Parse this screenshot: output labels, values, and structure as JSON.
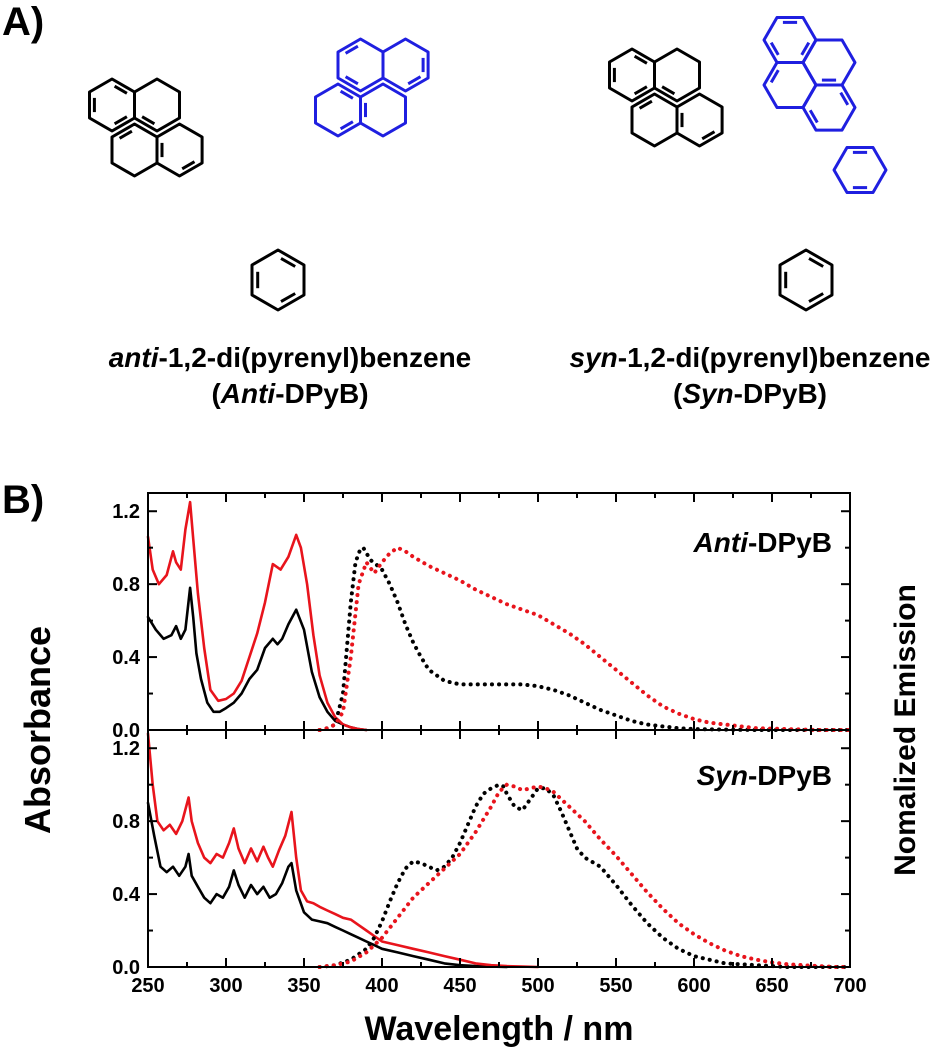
{
  "panels": {
    "a_label": "A)",
    "b_label": "B)"
  },
  "molecules": {
    "anti": {
      "line1_italic": "anti",
      "line1_rest": "-1,2-di(pyrenyl)benzene",
      "line2_open": "(",
      "line2_italic": "Anti",
      "line2_rest": "-DPyB)"
    },
    "syn": {
      "line1_italic": "syn",
      "line1_rest": "-1,2-di(pyrenyl)benzene",
      "line2_open": "(",
      "line2_italic": "Syn",
      "line2_rest": "-DPyB)"
    },
    "colors": {
      "black": "#000000",
      "blue": "#1f1fe0"
    }
  },
  "chart_data": {
    "type": "line",
    "xlabel": "Wavelength / nm",
    "ylabel_left": "Absorbance",
    "ylabel_right": "Nomalized Emission",
    "xlim": [
      250,
      700
    ],
    "xticks": [
      "250",
      "300",
      "350",
      "400",
      "450",
      "500",
      "550",
      "600",
      "650",
      "700"
    ],
    "ylim": [
      0,
      1.3
    ],
    "yticks": [
      "0.0",
      "0.4",
      "0.8",
      "1.2"
    ],
    "colors": {
      "black": "#000000",
      "red": "#e8141c"
    },
    "panels": [
      {
        "label_italic": "Anti",
        "label_rest": "-DPyB",
        "series": [
          {
            "color": "black",
            "style": "solid",
            "x": [
              250,
              255,
              260,
              265,
              268,
              271,
              274,
              277,
              279,
              281,
              284,
              288,
              292,
              296,
              300,
              305,
              310,
              315,
              320,
              325,
              330,
              333,
              336,
              340,
              345,
              350,
              355,
              360,
              365,
              370,
              375,
              380,
              385,
              390
            ],
            "y": [
              0.62,
              0.55,
              0.5,
              0.52,
              0.57,
              0.5,
              0.55,
              0.78,
              0.62,
              0.42,
              0.28,
              0.15,
              0.1,
              0.1,
              0.12,
              0.15,
              0.2,
              0.28,
              0.33,
              0.45,
              0.5,
              0.47,
              0.5,
              0.58,
              0.66,
              0.55,
              0.32,
              0.18,
              0.1,
              0.05,
              0.03,
              0.015,
              0.005,
              0.0
            ]
          },
          {
            "color": "red",
            "style": "solid",
            "x": [
              250,
              253,
              257,
              262,
              266,
              268,
              271,
              274,
              277,
              279,
              282,
              286,
              290,
              295,
              300,
              305,
              310,
              315,
              320,
              325,
              330,
              335,
              340,
              345,
              348,
              352,
              356,
              360,
              365,
              370,
              375,
              380,
              385,
              390
            ],
            "y": [
              1.06,
              0.88,
              0.8,
              0.85,
              0.98,
              0.92,
              0.88,
              1.1,
              1.25,
              1.05,
              0.75,
              0.45,
              0.22,
              0.16,
              0.17,
              0.2,
              0.27,
              0.4,
              0.53,
              0.7,
              0.91,
              0.88,
              0.95,
              1.07,
              1.0,
              0.8,
              0.52,
              0.3,
              0.15,
              0.07,
              0.03,
              0.015,
              0.005,
              0.0
            ]
          },
          {
            "color": "black",
            "style": "dotted",
            "x": [
              360,
              365,
              370,
              375,
              380,
              383,
              386,
              388,
              390,
              393,
              396,
              400,
              405,
              410,
              415,
              420,
              425,
              430,
              440,
              450,
              460,
              470,
              480,
              490,
              500,
              510,
              520,
              530,
              540,
              550,
              560,
              570,
              580,
              590,
              600,
              620,
              640,
              660,
              680,
              700
            ],
            "y": [
              0.0,
              0.01,
              0.03,
              0.2,
              0.7,
              0.92,
              0.99,
              1.0,
              0.97,
              0.93,
              0.91,
              0.88,
              0.8,
              0.7,
              0.58,
              0.48,
              0.4,
              0.33,
              0.27,
              0.25,
              0.25,
              0.25,
              0.25,
              0.25,
              0.24,
              0.22,
              0.19,
              0.15,
              0.11,
              0.08,
              0.05,
              0.03,
              0.02,
              0.01,
              0.005,
              0.002,
              0.0,
              0.0,
              0.0,
              0.0
            ]
          },
          {
            "color": "red",
            "style": "dotted",
            "x": [
              360,
              365,
              370,
              375,
              380,
              385,
              390,
              395,
              400,
              405,
              410,
              415,
              420,
              430,
              440,
              450,
              460,
              470,
              480,
              490,
              500,
              510,
              520,
              530,
              540,
              550,
              560,
              570,
              580,
              590,
              600,
              610,
              620,
              630,
              640,
              660,
              680,
              700
            ],
            "y": [
              0.0,
              0.01,
              0.03,
              0.1,
              0.4,
              0.8,
              0.92,
              0.86,
              0.92,
              0.97,
              1.0,
              0.98,
              0.95,
              0.9,
              0.86,
              0.82,
              0.77,
              0.73,
              0.69,
              0.66,
              0.63,
              0.58,
              0.53,
              0.47,
              0.4,
              0.33,
              0.26,
              0.19,
              0.13,
              0.09,
              0.06,
              0.04,
              0.03,
              0.02,
              0.01,
              0.005,
              0.0,
              0.0
            ]
          }
        ]
      },
      {
        "label_italic": "Syn",
        "label_rest": "-DPyB",
        "series": [
          {
            "color": "black",
            "style": "solid",
            "x": [
              250,
              254,
              258,
              262,
              266,
              270,
              274,
              276,
              278,
              282,
              286,
              290,
              294,
              298,
              302,
              305,
              308,
              312,
              316,
              320,
              324,
              328,
              332,
              336,
              340,
              342,
              345,
              350,
              355,
              360,
              365,
              370,
              375,
              380,
              385,
              390,
              395,
              400,
              410,
              420,
              430,
              440,
              450,
              460,
              470,
              480
            ],
            "y": [
              0.9,
              0.72,
              0.55,
              0.52,
              0.55,
              0.5,
              0.55,
              0.62,
              0.5,
              0.44,
              0.38,
              0.35,
              0.4,
              0.38,
              0.44,
              0.53,
              0.45,
              0.38,
              0.45,
              0.4,
              0.44,
              0.38,
              0.4,
              0.46,
              0.55,
              0.57,
              0.42,
              0.3,
              0.26,
              0.25,
              0.24,
              0.22,
              0.2,
              0.18,
              0.16,
              0.14,
              0.12,
              0.1,
              0.08,
              0.06,
              0.04,
              0.02,
              0.01,
              0.005,
              0.002,
              0.0
            ]
          },
          {
            "color": "red",
            "style": "solid",
            "x": [
              250,
              253,
              256,
              260,
              264,
              268,
              272,
              276,
              278,
              282,
              286,
              290,
              294,
              298,
              302,
              305,
              308,
              312,
              316,
              320,
              324,
              327,
              330,
              334,
              338,
              342,
              345,
              348,
              352,
              356,
              360,
              365,
              370,
              375,
              380,
              385,
              390,
              395,
              400,
              410,
              420,
              430,
              440,
              450,
              460,
              470,
              480,
              490,
              500
            ],
            "y": [
              1.28,
              1.0,
              0.8,
              0.75,
              0.78,
              0.73,
              0.8,
              0.93,
              0.8,
              0.68,
              0.6,
              0.57,
              0.62,
              0.6,
              0.68,
              0.76,
              0.65,
              0.57,
              0.65,
              0.58,
              0.66,
              0.6,
              0.55,
              0.64,
              0.72,
              0.85,
              0.6,
              0.42,
              0.36,
              0.35,
              0.33,
              0.31,
              0.29,
              0.27,
              0.26,
              0.23,
              0.2,
              0.17,
              0.14,
              0.12,
              0.1,
              0.08,
              0.06,
              0.04,
              0.02,
              0.01,
              0.005,
              0.002,
              0.0
            ]
          },
          {
            "color": "black",
            "style": "dotted",
            "x": [
              360,
              370,
              380,
              390,
              395,
              400,
              405,
              410,
              415,
              420,
              425,
              430,
              435,
              440,
              445,
              450,
              455,
              460,
              465,
              470,
              475,
              478,
              480,
              485,
              490,
              495,
              500,
              505,
              510,
              515,
              520,
              525,
              530,
              540,
              550,
              560,
              570,
              580,
              590,
              600,
              620,
              640,
              660,
              680,
              700
            ],
            "y": [
              0.0,
              0.01,
              0.04,
              0.1,
              0.16,
              0.25,
              0.36,
              0.46,
              0.54,
              0.58,
              0.57,
              0.55,
              0.53,
              0.55,
              0.6,
              0.68,
              0.78,
              0.88,
              0.95,
              0.98,
              1.0,
              0.99,
              0.95,
              0.88,
              0.86,
              0.92,
              0.98,
              0.98,
              0.94,
              0.85,
              0.75,
              0.65,
              0.6,
              0.55,
              0.45,
              0.34,
              0.24,
              0.16,
              0.1,
              0.06,
              0.02,
              0.01,
              0.0,
              0.0,
              0.0
            ]
          },
          {
            "color": "red",
            "style": "dotted",
            "x": [
              360,
              370,
              380,
              390,
              400,
              410,
              420,
              430,
              440,
              450,
              460,
              470,
              475,
              480,
              485,
              490,
              495,
              500,
              505,
              510,
              515,
              520,
              530,
              540,
              550,
              560,
              570,
              580,
              590,
              600,
              610,
              620,
              630,
              640,
              650,
              660,
              670,
              680,
              690,
              700
            ],
            "y": [
              0.0,
              0.01,
              0.03,
              0.08,
              0.16,
              0.27,
              0.38,
              0.46,
              0.54,
              0.62,
              0.74,
              0.88,
              0.96,
              1.0,
              0.99,
              0.97,
              0.98,
              0.99,
              0.98,
              0.96,
              0.92,
              0.88,
              0.8,
              0.7,
              0.61,
              0.51,
              0.41,
              0.32,
              0.24,
              0.18,
              0.13,
              0.09,
              0.06,
              0.04,
              0.025,
              0.015,
              0.01,
              0.005,
              0.0,
              0.0
            ]
          }
        ]
      }
    ]
  }
}
